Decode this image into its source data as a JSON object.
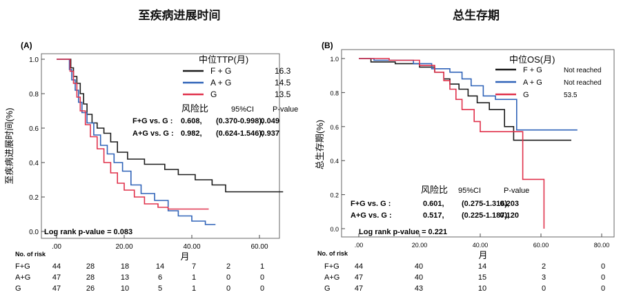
{
  "chart_data": [
    {
      "type": "line",
      "panel_label": "(A)",
      "title": "至疾病进展时间",
      "xlabel": "月",
      "ylabel": "至疾病进展时间(%)",
      "xlim": [
        0,
        70
      ],
      "ylim": [
        0,
        1.05
      ],
      "x_ticks": [
        0,
        20,
        40,
        60
      ],
      "x_tick_labels": [
        ".00",
        "20.00",
        "40.00",
        "60.00"
      ],
      "y_ticks": [
        0,
        0.2,
        0.4,
        0.6,
        0.8,
        1.0
      ],
      "y_tick_labels": [
        "0.0",
        "0.2",
        "0.4",
        "0.6",
        "0.8",
        "1.0"
      ],
      "legend": {
        "title": "中位TTP(月)",
        "entries": [
          {
            "name": "F + G",
            "median": "16.3",
            "color": "#1a1a1a"
          },
          {
            "name": "A + G",
            "median": "14.5",
            "color": "#2e62b8"
          },
          {
            "name": "G",
            "median": "13.5",
            "color": "#e0304a"
          }
        ]
      },
      "stats": {
        "header": [
          "风险比",
          "95%CI",
          "P-value"
        ],
        "rows": [
          [
            "F+G vs. G :",
            "0.608,",
            "(0.370-0.998),",
            "0.049"
          ],
          [
            "A+G vs. G :",
            "0.982,",
            "(0.624-1.546),",
            "0.937"
          ]
        ]
      },
      "logrank": "Log rank p-value = 0.083",
      "series": [
        {
          "name": "F + G",
          "color": "#1a1a1a",
          "points": [
            [
              0,
              1
            ],
            [
              4.2,
              1
            ],
            [
              4.2,
              0.95
            ],
            [
              5,
              0.95
            ],
            [
              5,
              0.9
            ],
            [
              6,
              0.9
            ],
            [
              6,
              0.86
            ],
            [
              7,
              0.86
            ],
            [
              7,
              0.8
            ],
            [
              8,
              0.8
            ],
            [
              8,
              0.74
            ],
            [
              9,
              0.74
            ],
            [
              9,
              0.68
            ],
            [
              10.5,
              0.68
            ],
            [
              10.5,
              0.63
            ],
            [
              12,
              0.63
            ],
            [
              12,
              0.6
            ],
            [
              14,
              0.6
            ],
            [
              14,
              0.57
            ],
            [
              16,
              0.57
            ],
            [
              16,
              0.52
            ],
            [
              18,
              0.52
            ],
            [
              18,
              0.46
            ],
            [
              21,
              0.46
            ],
            [
              21,
              0.42
            ],
            [
              26,
              0.42
            ],
            [
              26,
              0.39
            ],
            [
              32,
              0.39
            ],
            [
              32,
              0.36
            ],
            [
              36,
              0.36
            ],
            [
              36,
              0.33
            ],
            [
              41,
              0.33
            ],
            [
              41,
              0.3
            ],
            [
              46,
              0.3
            ],
            [
              46,
              0.27
            ],
            [
              50,
              0.27
            ],
            [
              50,
              0.23
            ],
            [
              67,
              0.23
            ]
          ]
        },
        {
          "name": "A + G",
          "color": "#2e62b8",
          "points": [
            [
              0,
              1
            ],
            [
              3.8,
              1
            ],
            [
              3.8,
              0.94
            ],
            [
              4.5,
              0.94
            ],
            [
              4.5,
              0.88
            ],
            [
              5.5,
              0.88
            ],
            [
              5.5,
              0.82
            ],
            [
              6.5,
              0.82
            ],
            [
              6.5,
              0.75
            ],
            [
              7.5,
              0.75
            ],
            [
              7.5,
              0.69
            ],
            [
              9,
              0.69
            ],
            [
              9,
              0.63
            ],
            [
              11,
              0.63
            ],
            [
              11,
              0.56
            ],
            [
              13,
              0.56
            ],
            [
              13,
              0.5
            ],
            [
              15,
              0.5
            ],
            [
              15,
              0.45
            ],
            [
              17,
              0.45
            ],
            [
              17,
              0.4
            ],
            [
              19.5,
              0.4
            ],
            [
              19.5,
              0.35
            ],
            [
              22,
              0.35
            ],
            [
              22,
              0.27
            ],
            [
              25,
              0.27
            ],
            [
              25,
              0.22
            ],
            [
              29,
              0.22
            ],
            [
              29,
              0.18
            ],
            [
              33,
              0.18
            ],
            [
              33,
              0.12
            ],
            [
              36,
              0.12
            ],
            [
              36,
              0.09
            ],
            [
              40,
              0.09
            ],
            [
              40,
              0.06
            ],
            [
              44,
              0.06
            ],
            [
              44,
              0.04
            ],
            [
              47,
              0.04
            ]
          ]
        },
        {
          "name": "G",
          "color": "#e0304a",
          "points": [
            [
              0,
              1
            ],
            [
              4,
              1
            ],
            [
              4,
              0.93
            ],
            [
              5,
              0.93
            ],
            [
              5,
              0.86
            ],
            [
              6,
              0.86
            ],
            [
              6,
              0.78
            ],
            [
              7,
              0.78
            ],
            [
              7,
              0.7
            ],
            [
              8.5,
              0.7
            ],
            [
              8.5,
              0.62
            ],
            [
              10,
              0.62
            ],
            [
              10,
              0.55
            ],
            [
              12,
              0.55
            ],
            [
              12,
              0.48
            ],
            [
              14,
              0.48
            ],
            [
              14,
              0.4
            ],
            [
              16,
              0.4
            ],
            [
              16,
              0.34
            ],
            [
              18,
              0.34
            ],
            [
              18,
              0.28
            ],
            [
              20,
              0.28
            ],
            [
              20,
              0.24
            ],
            [
              23,
              0.24
            ],
            [
              23,
              0.2
            ],
            [
              26,
              0.2
            ],
            [
              26,
              0.16
            ],
            [
              30,
              0.16
            ],
            [
              30,
              0.14
            ],
            [
              33,
              0.14
            ],
            [
              33,
              0.13
            ],
            [
              45,
              0.13
            ]
          ]
        }
      ],
      "risk_table": {
        "header": "No. of risk",
        "rows": [
          {
            "label": "F+G",
            "values": [
              "44",
              "28",
              "18",
              "14",
              "7",
              "2",
              "1"
            ]
          },
          {
            "label": "A+G",
            "values": [
              "47",
              "28",
              "13",
              "6",
              "1",
              "0",
              "0"
            ]
          },
          {
            "label": "G",
            "values": [
              "47",
              "26",
              "10",
              "5",
              "1",
              "0",
              "0"
            ]
          }
        ]
      }
    },
    {
      "type": "line",
      "panel_label": "(B)",
      "title": "总生存期",
      "xlabel": "月",
      "ylabel": "总生存期(%)",
      "xlim": [
        0,
        80
      ],
      "ylim": [
        0,
        1.05
      ],
      "x_ticks": [
        0,
        20,
        40,
        60,
        80
      ],
      "x_tick_labels": [
        ".00",
        "20.00",
        "40.00",
        "60.00",
        "80.00"
      ],
      "y_ticks": [
        0,
        0.2,
        0.4,
        0.6,
        0.8,
        1.0
      ],
      "y_tick_labels": [
        "0.0",
        "0.2",
        "0.4",
        "0.6",
        "0.8",
        "1.0"
      ],
      "legend": {
        "title": "中位OS(月)",
        "entries": [
          {
            "name": "F + G",
            "median": "Not reached",
            "color": "#1a1a1a"
          },
          {
            "name": "A + G",
            "median": "Not reached",
            "color": "#2e62b8"
          },
          {
            "name": "G",
            "median": "53.5",
            "color": "#e0304a"
          }
        ]
      },
      "stats": {
        "header": [
          "风险比",
          "95%CI",
          "P-value"
        ],
        "rows": [
          [
            "F+G vs. G :",
            "0.601,",
            "(0.275-1.316),",
            "0.203"
          ],
          [
            "A+G vs. G :",
            "0.517,",
            "(0.225-1.187),",
            "0.120"
          ]
        ]
      },
      "logrank": "Log rank p-value = 0.221",
      "series": [
        {
          "name": "F + G",
          "color": "#1a1a1a",
          "points": [
            [
              0,
              1
            ],
            [
              4,
              1
            ],
            [
              4,
              0.98
            ],
            [
              12,
              0.98
            ],
            [
              12,
              0.97
            ],
            [
              20,
              0.97
            ],
            [
              20,
              0.95
            ],
            [
              25,
              0.95
            ],
            [
              25,
              0.92
            ],
            [
              28,
              0.92
            ],
            [
              28,
              0.88
            ],
            [
              30,
              0.88
            ],
            [
              30,
              0.85
            ],
            [
              33,
              0.85
            ],
            [
              33,
              0.82
            ],
            [
              36,
              0.82
            ],
            [
              36,
              0.78
            ],
            [
              39,
              0.78
            ],
            [
              39,
              0.74
            ],
            [
              43,
              0.74
            ],
            [
              43,
              0.7
            ],
            [
              48,
              0.7
            ],
            [
              48,
              0.6
            ],
            [
              51,
              0.6
            ],
            [
              51,
              0.52
            ],
            [
              70,
              0.52
            ]
          ]
        },
        {
          "name": "A + G",
          "color": "#2e62b8",
          "points": [
            [
              0,
              1
            ],
            [
              5,
              1
            ],
            [
              5,
              0.99
            ],
            [
              18,
              0.99
            ],
            [
              18,
              0.97
            ],
            [
              24,
              0.97
            ],
            [
              24,
              0.94
            ],
            [
              30,
              0.94
            ],
            [
              30,
              0.92
            ],
            [
              34,
              0.92
            ],
            [
              34,
              0.88
            ],
            [
              37,
              0.88
            ],
            [
              37,
              0.84
            ],
            [
              41,
              0.84
            ],
            [
              41,
              0.78
            ],
            [
              45,
              0.78
            ],
            [
              45,
              0.76
            ],
            [
              52,
              0.76
            ],
            [
              52,
              0.58
            ],
            [
              72,
              0.58
            ]
          ]
        },
        {
          "name": "G",
          "color": "#e0304a",
          "points": [
            [
              0,
              1
            ],
            [
              10,
              1
            ],
            [
              10,
              0.99
            ],
            [
              20,
              0.99
            ],
            [
              20,
              0.96
            ],
            [
              25,
              0.96
            ],
            [
              25,
              0.92
            ],
            [
              28,
              0.92
            ],
            [
              28,
              0.87
            ],
            [
              30,
              0.87
            ],
            [
              30,
              0.82
            ],
            [
              32,
              0.82
            ],
            [
              32,
              0.76
            ],
            [
              34,
              0.76
            ],
            [
              34,
              0.7
            ],
            [
              38,
              0.7
            ],
            [
              38,
              0.63
            ],
            [
              40,
              0.63
            ],
            [
              40,
              0.57
            ],
            [
              54,
              0.57
            ],
            [
              54,
              0.29
            ],
            [
              61,
              0.29
            ],
            [
              61,
              0
            ]
          ]
        }
      ],
      "risk_table": {
        "header": "No. of risk",
        "rows": [
          {
            "label": "F+G",
            "values": [
              "44",
              "40",
              "14",
              "2",
              "0"
            ]
          },
          {
            "label": "A+G",
            "values": [
              "47",
              "40",
              "15",
              "3",
              "0"
            ]
          },
          {
            "label": "G",
            "values": [
              "47",
              "43",
              "10",
              "0",
              "0"
            ]
          }
        ]
      }
    }
  ]
}
